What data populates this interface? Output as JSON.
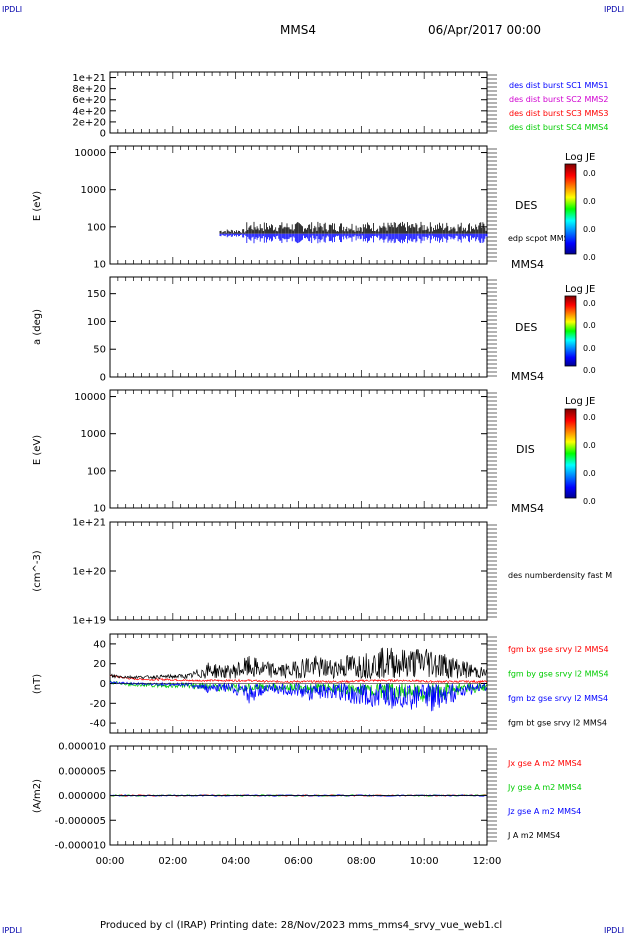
{
  "page": {
    "corner_tl": "IPDLI",
    "corner_tr": "IPDLI",
    "corner_bl": "IPDLI",
    "corner_br": "IPDLI",
    "spacecraft": "MMS4",
    "date": "06/Apr/2017 00:00",
    "footer": "Produced by cl (IRAP)   Printing date: 28/Nov/2023   mms_mms4_srvy_vue_web1.cl"
  },
  "colors": {
    "blue": "#0000ff",
    "magenta": "#d000d0",
    "red": "#ff0000",
    "green": "#00cc00",
    "black": "#000000",
    "corner": "#0000aa"
  },
  "chart_data": [
    {
      "type": "line",
      "panel": "burst",
      "yticks": [
        "1e+21",
        "8e+20",
        "6e+20",
        "4e+20",
        "2e+20",
        "0"
      ],
      "ylim": [
        0,
        1.1e+21
      ],
      "reference_line": 0,
      "legend": [
        {
          "text": "des dist burst SC1 MMS1",
          "color": "#0000ff"
        },
        {
          "text": "des dist burst SC2 MMS2",
          "color": "#d000d0"
        },
        {
          "text": "des dist burst SC3 MMS3",
          "color": "#ff0000"
        },
        {
          "text": "des dist burst SC4 MMS4",
          "color": "#00cc00"
        }
      ]
    },
    {
      "type": "heatmap",
      "panel": "des_energy",
      "ylabel": "E (eV)",
      "log": true,
      "ylim": [
        10,
        15000
      ],
      "yticks": [
        "10000",
        "1000",
        "100",
        "10"
      ],
      "species": "DES",
      "probe": "MMS4",
      "overlay_label": "edp scpot MMS4",
      "colorbar_title": "Log JE",
      "colorbar_ticks": [
        "0.0",
        "0.0",
        "0.0",
        "0.0"
      ]
    },
    {
      "type": "heatmap",
      "panel": "des_pitch",
      "ylabel": "a (deg)",
      "ylim": [
        0,
        180
      ],
      "yticks": [
        "150",
        "100",
        "50",
        "0"
      ],
      "species": "DES",
      "probe": "MMS4",
      "colorbar_title": "Log JE",
      "colorbar_ticks": [
        "0.0",
        "0.0",
        "0.0",
        "0.0"
      ]
    },
    {
      "type": "heatmap",
      "panel": "dis_energy",
      "ylabel": "E (eV)",
      "log": true,
      "ylim": [
        10,
        15000
      ],
      "yticks": [
        "10000",
        "1000",
        "100",
        "10"
      ],
      "species": "DIS",
      "probe": "MMS4",
      "colorbar_title": "Log JE",
      "colorbar_ticks": [
        "0.0",
        "0.0",
        "0.0",
        "0.0"
      ]
    },
    {
      "type": "line",
      "panel": "density",
      "ylabel": "(cm^-3)",
      "log": true,
      "ylim": [
        1e+19,
        1e+21
      ],
      "yticks": [
        "1e+21",
        "1e+20",
        "1e+19"
      ],
      "legend": [
        {
          "text": "des numberdensity fast M",
          "color": "#000000"
        }
      ]
    },
    {
      "type": "line",
      "panel": "fgm",
      "ylabel": "(nT)",
      "ylim": [
        -50,
        50
      ],
      "yticks": [
        "40",
        "20",
        "0",
        "-20",
        "-40"
      ],
      "x": [
        "00:00",
        "01:00",
        "02:00",
        "03:00",
        "03:30",
        "04:00",
        "05:00",
        "05:30",
        "06:00",
        "07:00",
        "07:30",
        "08:00",
        "08:30",
        "09:00",
        "09:30",
        "10:00",
        "10:30",
        "11:00",
        "11:30",
        "12:00"
      ],
      "series": [
        {
          "name": "fgm bx gse srvy l2 MMS4",
          "color": "#ff0000",
          "values": [
            8,
            5,
            4,
            4,
            3,
            3,
            3,
            3,
            2,
            2,
            2,
            2,
            2,
            3,
            3,
            3,
            2,
            2,
            2,
            2
          ]
        },
        {
          "name": "fgm by gse srvy l2 MMS4",
          "color": "#00cc00",
          "values": [
            3,
            -2,
            -3,
            -4,
            -5,
            -6,
            -8,
            -10,
            -6,
            -8,
            -10,
            -9,
            -12,
            -14,
            -16,
            -15,
            -20,
            -14,
            -10,
            -8
          ]
        },
        {
          "name": "fgm bz gse srvy l2 MMS4",
          "color": "#0000ff",
          "values": [
            2,
            0,
            -1,
            -2,
            -3,
            -10,
            -8,
            -20,
            -10,
            -12,
            -18,
            -15,
            -20,
            -22,
            -28,
            -25,
            -30,
            -22,
            -12,
            -8
          ]
        },
        {
          "name": "fgm bt gse srvy l2 MMS4",
          "color": "#000000",
          "values": [
            10,
            8,
            8,
            9,
            10,
            22,
            18,
            28,
            22,
            20,
            30,
            25,
            30,
            32,
            38,
            35,
            40,
            30,
            22,
            15
          ]
        }
      ]
    },
    {
      "type": "line",
      "panel": "current",
      "ylabel": "(A/m2)",
      "ylim": [
        -1e-05,
        1e-05
      ],
      "yticks": [
        "0.000010",
        "0.000005",
        "0.000000",
        "-0.000005",
        "-0.000010"
      ],
      "xticks": [
        "00:00",
        "02:00",
        "04:00",
        "06:00",
        "08:00",
        "10:00",
        "12:00"
      ],
      "series": [
        {
          "name": "Jx gse A m2 MMS4",
          "color": "#ff0000",
          "values": [
            0,
            0,
            0,
            0,
            0,
            0,
            0
          ]
        },
        {
          "name": "Jy gse A m2 MMS4",
          "color": "#00cc00",
          "values": [
            0,
            0,
            0,
            0,
            0,
            0,
            0
          ]
        },
        {
          "name": "Jz gse A m2 MMS4",
          "color": "#0000ff",
          "values": [
            0,
            0,
            0,
            0,
            0,
            0,
            0
          ]
        },
        {
          "name": "J A m2 MMS4",
          "color": "#000000",
          "values": [
            0,
            0,
            0,
            0,
            0,
            0,
            0
          ]
        }
      ]
    }
  ]
}
